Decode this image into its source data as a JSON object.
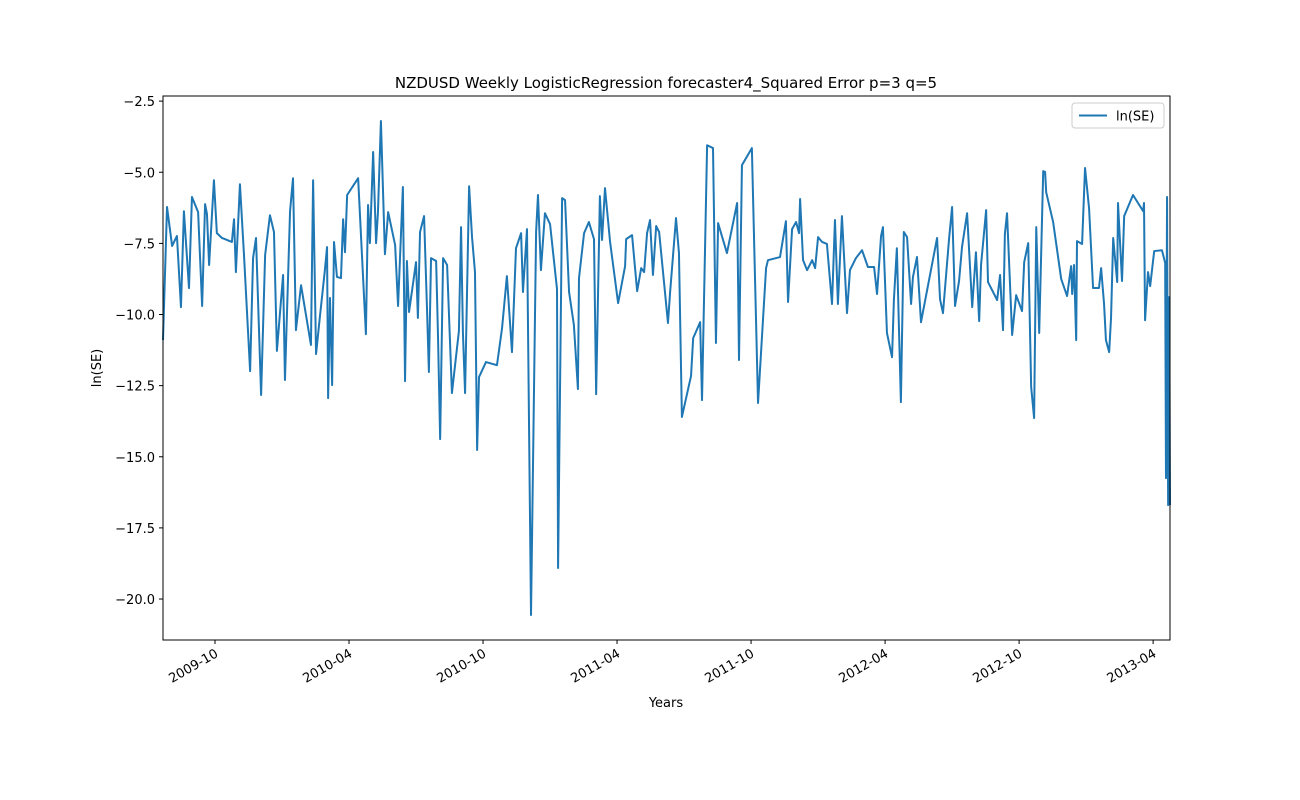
{
  "chart_data": {
    "type": "line",
    "title": "NZDUSD Weekly LogisticRegression forecaster4_Squared Error p=3 q=5",
    "xlabel": "Years",
    "ylabel": "ln(SE)",
    "x": [
      2009.556,
      2009.571,
      2009.59,
      2009.608,
      2009.623,
      2009.634,
      2009.653,
      2009.664,
      2009.687,
      2009.702,
      2009.713,
      2009.72,
      2009.728,
      2009.746,
      2009.757,
      2009.776,
      2009.813,
      2009.821,
      2009.828,
      2009.843,
      2009.858,
      2009.881,
      2009.892,
      2009.903,
      2009.922,
      2009.937,
      2009.955,
      2009.97,
      2009.981,
      2010.004,
      2010.011,
      2010.03,
      2010.041,
      2010.052,
      2010.071,
      2010.108,
      2010.116,
      2010.127,
      2010.142,
      2010.16,
      2010.168,
      2010.172,
      2010.179,
      2010.187,
      2010.194,
      2010.205,
      2010.22,
      2010.228,
      2010.235,
      2010.243,
      2010.284,
      2010.313,
      2010.321,
      2010.328,
      2010.34,
      2010.351,
      2010.358,
      2010.369,
      2010.384,
      2010.396,
      2010.422,
      2010.433,
      2010.451,
      2010.459,
      2010.466,
      2010.474,
      2010.5,
      2010.507,
      2010.515,
      2010.53,
      2010.541,
      2010.548,
      2010.556,
      2010.575,
      2010.582,
      2010.59,
      2010.601,
      2010.616,
      2010.634,
      2010.66,
      2010.668,
      2010.675,
      2010.683,
      2010.698,
      2010.709,
      2010.72,
      2010.728,
      2010.735,
      2010.761,
      2010.802,
      2010.821,
      2010.839,
      2010.858,
      2010.873,
      2010.892,
      2010.899,
      2010.914,
      2010.929,
      2010.948,
      2010.955,
      2010.966,
      2010.981,
      2011.0,
      2011.026,
      2011.03,
      2011.045,
      2011.056,
      2011.071,
      2011.089,
      2011.104,
      2011.108,
      2011.127,
      2011.145,
      2011.164,
      2011.172,
      2011.186,
      2011.194,
      2011.205,
      2011.224,
      2011.254,
      2011.28,
      2011.284,
      2011.306,
      2011.325,
      2011.34,
      2011.351,
      2011.362,
      2011.373,
      2011.384,
      2011.396,
      2011.407,
      2011.44,
      2011.448,
      2011.47,
      2011.481,
      2011.492,
      2011.526,
      2011.534,
      2011.56,
      2011.567,
      2011.586,
      2011.608,
      2011.619,
      2011.627,
      2011.66,
      2011.698,
      2011.705,
      2011.716,
      2011.753,
      2011.776,
      2011.806,
      2011.813,
      2011.858,
      2011.88,
      2011.888,
      2011.903,
      2011.918,
      2011.929,
      2011.933,
      2011.944,
      2011.959,
      2011.978,
      2011.989,
      2012.0,
      2012.015,
      2012.033,
      2012.052,
      2012.063,
      2012.074,
      2012.089,
      2012.108,
      2012.119,
      2012.141,
      2012.164,
      2012.186,
      2012.209,
      2012.22,
      2012.235,
      2012.242,
      2012.257,
      2012.276,
      2012.283,
      2012.294,
      2012.309,
      2012.32,
      2012.332,
      2012.347,
      2012.354,
      2012.369,
      2012.384,
      2012.444,
      2012.455,
      2012.466,
      2012.489,
      2012.5,
      2012.511,
      2012.526,
      2012.537,
      2012.556,
      2012.575,
      2012.589,
      2012.601,
      2012.608,
      2012.627,
      2012.634,
      2012.668,
      2012.679,
      2012.69,
      2012.697,
      2012.705,
      2012.724,
      2012.739,
      2012.761,
      2012.769,
      2012.784,
      2012.795,
      2012.806,
      2012.814,
      2012.825,
      2012.84,
      2012.847,
      2012.851,
      2012.877,
      2012.907,
      2012.929,
      2012.944,
      2012.948,
      2012.955,
      2012.963,
      2012.966,
      2012.985,
      2012.996,
      2013.011,
      2013.026,
      2013.048,
      2013.056,
      2013.067,
      2013.074,
      2013.086,
      2013.093,
      2013.101,
      2013.116,
      2013.119,
      2013.134,
      2013.142,
      2013.175,
      2013.213,
      2013.216,
      2013.22,
      2013.231,
      2013.239,
      2013.254,
      2013.283,
      2013.295,
      2013.298,
      2013.302,
      2013.306,
      2013.31,
      2013.313
    ],
    "series": [
      {
        "name": "ln(SE)",
        "color": "#1f77b4",
        "values": [
          -10.9,
          -6.22,
          -7.59,
          -7.24,
          -9.74,
          -6.37,
          -9.07,
          -5.87,
          -6.4,
          -9.7,
          -6.12,
          -6.47,
          -8.26,
          -5.28,
          -7.14,
          -7.31,
          -7.45,
          -6.65,
          -8.51,
          -5.42,
          -7.88,
          -11.99,
          -8.02,
          -7.31,
          -12.83,
          -7.91,
          -6.51,
          -7.1,
          -11.28,
          -8.61,
          -12.3,
          -6.37,
          -5.21,
          -10.55,
          -8.97,
          -11.07,
          -5.28,
          -11.39,
          -10.02,
          -8.44,
          -7.63,
          -12.94,
          -9.42,
          -12.48,
          -7.45,
          -8.68,
          -8.72,
          -6.65,
          -7.81,
          -5.8,
          -5.21,
          -10.69,
          -6.15,
          -7.49,
          -4.29,
          -7.49,
          -6.4,
          -3.2,
          -7.88,
          -6.4,
          -7.56,
          -9.7,
          -5.52,
          -12.34,
          -8.12,
          -9.91,
          -8.16,
          -10.12,
          -7.1,
          -6.54,
          -9.81,
          -12.02,
          -8.02,
          -8.12,
          -10.76,
          -14.38,
          -8.02,
          -8.26,
          -12.76,
          -10.58,
          -6.93,
          -10.65,
          -12.76,
          -5.49,
          -7.28,
          -8.51,
          -14.76,
          -12.2,
          -11.67,
          -11.78,
          -10.48,
          -8.65,
          -11.32,
          -7.67,
          -7.14,
          -9.21,
          -7.0,
          -20.56,
          -7.1,
          -5.8,
          -8.44,
          -6.44,
          -6.82,
          -9.11,
          -18.91,
          -5.91,
          -5.98,
          -9.21,
          -10.37,
          -12.62,
          -8.72,
          -7.14,
          -6.75,
          -7.35,
          -12.8,
          -5.84,
          -7.38,
          -5.56,
          -7.45,
          -9.6,
          -8.3,
          -7.35,
          -7.21,
          -9.18,
          -8.37,
          -8.51,
          -7.14,
          -6.68,
          -8.61,
          -6.89,
          -7.1,
          -10.3,
          -9.21,
          -6.61,
          -7.84,
          -13.6,
          -12.16,
          -10.83,
          -10.27,
          -13.01,
          -4.05,
          -4.15,
          -11.0,
          -6.79,
          -7.84,
          -6.08,
          -11.6,
          -4.75,
          -4.15,
          -13.11,
          -8.37,
          -8.09,
          -7.98,
          -6.72,
          -9.56,
          -7.0,
          -6.75,
          -7.14,
          -5.94,
          -8.09,
          -8.44,
          -8.09,
          -8.37,
          -7.28,
          -7.45,
          -7.52,
          -9.63,
          -6.68,
          -9.63,
          -6.54,
          -9.95,
          -8.44,
          -8.02,
          -7.74,
          -8.33,
          -8.33,
          -9.28,
          -7.24,
          -6.93,
          -10.65,
          -11.5,
          -9.46,
          -7.67,
          -13.08,
          -7.1,
          -7.28,
          -9.63,
          -8.68,
          -7.98,
          -10.27,
          -7.31,
          -9.46,
          -9.95,
          -7.31,
          -6.22,
          -9.7,
          -8.82,
          -7.63,
          -6.44,
          -9.74,
          -7.81,
          -10.23,
          -8.26,
          -6.33,
          -8.86,
          -9.49,
          -8.61,
          -10.55,
          -7.17,
          -6.44,
          -10.72,
          -9.32,
          -9.88,
          -8.16,
          -7.49,
          -12.55,
          -13.64,
          -6.93,
          -10.65,
          -4.96,
          -4.99,
          -5.7,
          -6.75,
          -8.75,
          -9.35,
          -8.3,
          -9.28,
          -8.26,
          -10.9,
          -7.42,
          -7.52,
          -4.85,
          -6.26,
          -9.07,
          -9.07,
          -8.37,
          -9.63,
          -10.9,
          -11.32,
          -10.12,
          -7.31,
          -8.86,
          -6.08,
          -8.82,
          -6.54,
          -5.8,
          -6.37,
          -6.08,
          -10.2,
          -8.51,
          -9.0,
          -7.77,
          -7.74,
          -8.19,
          -15.75,
          -5.87,
          -16.7,
          -9.39,
          -16.7
        ]
      }
    ],
    "xlim": [
      2009.556,
      2013.313
    ],
    "ylim": [
      -21.44,
      -2.32
    ],
    "xticks": [
      {
        "value": 2009.75,
        "label": "2009-10"
      },
      {
        "value": 2010.25,
        "label": "2010-04"
      },
      {
        "value": 2010.75,
        "label": "2010-10"
      },
      {
        "value": 2011.25,
        "label": "2011-04"
      },
      {
        "value": 2011.75,
        "label": "2011-10"
      },
      {
        "value": 2012.25,
        "label": "2012-04"
      },
      {
        "value": 2012.75,
        "label": "2012-10"
      },
      {
        "value": 2013.25,
        "label": "2013-04"
      }
    ],
    "yticks": [
      {
        "value": -20,
        "label": "−20.0"
      },
      {
        "value": -17.5,
        "label": "−17.5"
      },
      {
        "value": -15,
        "label": "−15.0"
      },
      {
        "value": -12.5,
        "label": "−12.5"
      },
      {
        "value": -10,
        "label": "−10.0"
      },
      {
        "value": -7.5,
        "label": "−7.5"
      },
      {
        "value": -5,
        "label": "−5.0"
      },
      {
        "value": -2.5,
        "label": "−2.5"
      }
    ],
    "grid": false,
    "legend": "upper right"
  }
}
